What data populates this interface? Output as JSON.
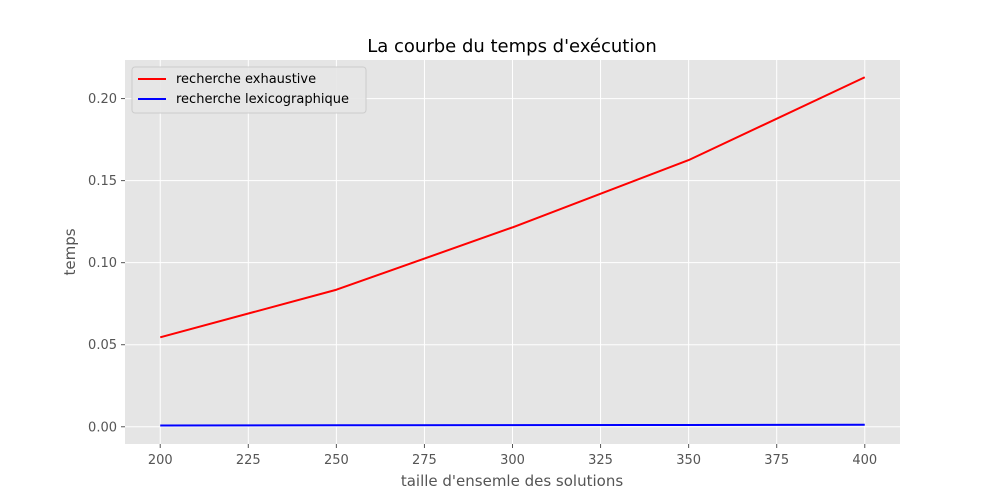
{
  "chart_data": {
    "type": "line",
    "title": "La courbe du temps d'exécution",
    "xlabel": "taille d'ensemle des solutions",
    "ylabel": "temps",
    "x": [
      200,
      250,
      300,
      350,
      400
    ],
    "series": [
      {
        "name": "recherche exhaustive",
        "color": "#ff0000",
        "values": [
          0.0545,
          0.0835,
          0.1215,
          0.1625,
          0.213
        ]
      },
      {
        "name": "recherche lexicographique",
        "color": "#0000ff",
        "values": [
          0.0008,
          0.0009,
          0.001,
          0.0011,
          0.0012
        ]
      }
    ],
    "xlim": [
      190,
      410
    ],
    "ylim": [
      -0.0105,
      0.2235
    ],
    "xticks": [
      200,
      225,
      250,
      275,
      300,
      325,
      350,
      375,
      400
    ],
    "yticks": [
      0.0,
      0.05,
      0.1,
      0.15,
      0.2
    ],
    "xtick_labels": [
      "200",
      "225",
      "250",
      "275",
      "300",
      "325",
      "350",
      "375",
      "400"
    ],
    "ytick_labels": [
      "0.00",
      "0.05",
      "0.10",
      "0.15",
      "0.20"
    ],
    "grid": true,
    "legend_position": "top-left",
    "plot_background": "#e5e5e5",
    "grid_color": "#ffffff"
  }
}
